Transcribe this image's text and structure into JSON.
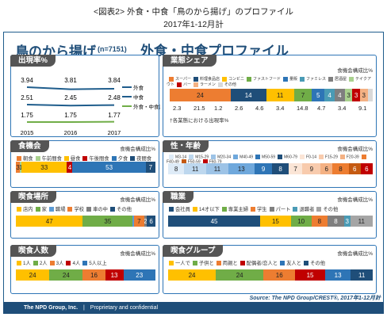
{
  "header": {
    "line1": "<図表2> 外食・中食「鳥のから揚げ」のプロファイル",
    "line2": "2017年1-12月計"
  },
  "title": {
    "main": "鳥のから揚げ",
    "n": "(n=7151)",
    "sub": "外食・中食プロファイル"
  },
  "source": "Source: The NPD Group/CREST®, 2017年1-12月計",
  "footer": {
    "company": "The NPD Group, Inc.",
    "sep": "|",
    "conf": "Proprietary and confidential"
  },
  "chart_data": [
    {
      "type": "line",
      "title": "出現率%",
      "x": [
        "2015",
        "2016",
        "2017"
      ],
      "series": [
        {
          "name": "外食",
          "values": [
            3.94,
            3.81,
            3.84
          ],
          "color": "#1f5d8c"
        },
        {
          "name": "中食",
          "values": [
            2.51,
            2.45,
            2.48
          ],
          "color": "#1f5d8c"
        },
        {
          "name": "外食・中食計",
          "values": [
            1.75,
            1.75,
            1.77
          ],
          "color": "#70ad47"
        }
      ],
      "labels": [
        [
          "3.94",
          "3.81",
          "3.84"
        ],
        [
          "2.51",
          "2.45",
          "2.48"
        ],
        [
          "1.75",
          "1.75",
          "1.77"
        ]
      ]
    },
    {
      "type": "bar",
      "title": "食機会",
      "note": "食機会構成比%",
      "legend": [
        "朝食",
        "午前間食",
        "昼食",
        "午後間食",
        "夕食",
        "夜間食"
      ],
      "values": [
        3,
        1,
        33,
        4,
        53,
        7
      ],
      "labels": [
        "3",
        "1",
        "33",
        "4",
        "53",
        "7"
      ],
      "colors": [
        "#ed7d31",
        "#a9d18e",
        "#ffc000",
        "#c00000",
        "#2e75b6",
        "#1f4e79"
      ]
    },
    {
      "type": "bar",
      "title": "喫食場所",
      "note": "食機会構成比%",
      "legend": [
        "店内",
        "家",
        "職場",
        "学校",
        "車の中",
        "その他"
      ],
      "values": [
        47,
        35,
        1,
        7,
        2,
        6
      ],
      "labels": [
        "47",
        "35",
        "",
        "7",
        "2",
        "6"
      ],
      "colors": [
        "#ffc000",
        "#70ad47",
        "#5b9bd5",
        "#ed7d31",
        "#7f7f7f",
        "#1f4e79"
      ]
    },
    {
      "type": "bar",
      "title": "喫食人数",
      "note": "食機会構成比%",
      "legend": [
        "1人",
        "2人",
        "3人",
        "4人",
        "5人以上"
      ],
      "values": [
        24,
        24,
        16,
        13,
        23
      ],
      "labels": [
        "24",
        "24",
        "16",
        "13",
        "23"
      ],
      "colors": [
        "#ffc000",
        "#70ad47",
        "#ed7d31",
        "#c00000",
        "#2e75b6"
      ]
    },
    {
      "type": "bar",
      "title": "業態シェア",
      "note": "食機会構成比%",
      "legend": [
        "スーパー",
        "料理食品店",
        "コンビニ",
        "ファストフード",
        "量販",
        "ファミレス",
        "居酒屋",
        "テイクアウト",
        "バー",
        "ラーメン",
        "その他"
      ],
      "values": [
        24,
        14,
        11,
        7,
        5,
        4,
        4,
        3,
        3,
        3,
        2
      ],
      "labels": [
        "24",
        "14",
        "11",
        "7",
        "5",
        "4",
        "4",
        "3",
        "3",
        "3",
        ""
      ],
      "colors": [
        "#ed7d31",
        "#1f4e79",
        "#ffc000",
        "#70ad47",
        "#2e75b6",
        "#4a9bb5",
        "#7f7f7f",
        "#a9d18e",
        "#c00000",
        "#f4b183",
        "#d9d9d9"
      ],
      "sub_values": [
        "2.3",
        "21.5",
        "1.2",
        "2.6",
        "4.6",
        "3.4",
        "14.8",
        "4.7",
        "3.4",
        "9.1"
      ],
      "sub_note": "†各業態における出現率%"
    },
    {
      "type": "bar",
      "title": "性・年齢",
      "note": "食機会構成比%",
      "legend": [
        "M3-14",
        "M15-29",
        "M20-34",
        "M40-49",
        "M50-59",
        "M60-79",
        "F0-14",
        "F15-29",
        "F20-39",
        "F40-49",
        "F50-59",
        "F60-79"
      ],
      "values": [
        8,
        11,
        11,
        13,
        9,
        8,
        7,
        9,
        6,
        8,
        6,
        6
      ],
      "labels": [
        "8",
        "11",
        "11",
        "13",
        "9",
        "8",
        "7",
        "9",
        "6",
        "8",
        "6",
        "6"
      ],
      "colors": [
        "#deebf7",
        "#bdd7ee",
        "#9dc3e6",
        "#6fa8dc",
        "#2e75b6",
        "#1f4e79",
        "#fbe5d6",
        "#f8cbad",
        "#f4b183",
        "#ed7d31",
        "#c55a11",
        "#c00000"
      ]
    },
    {
      "type": "bar",
      "title": "職業",
      "note": "食機会構成比%",
      "legend": [
        "会社員",
        "14才以下",
        "専業主婦",
        "学生",
        "パート",
        "退職者",
        "その他"
      ],
      "values": [
        45,
        15,
        10,
        8,
        8,
        3,
        11
      ],
      "labels": [
        "45",
        "15",
        "10",
        "8",
        "8",
        "3",
        "11"
      ],
      "colors": [
        "#1f4e79",
        "#ffc000",
        "#70ad47",
        "#ed7d31",
        "#7f7f7f",
        "#4a9bb5",
        "#a5a5a5"
      ]
    },
    {
      "type": "bar",
      "title": "喫食グループ",
      "note": "食機会構成比%",
      "legend": [
        "一人で",
        "子供と",
        "両親と",
        "配偶者/恋人と",
        "友人と",
        "その他"
      ],
      "values": [
        24,
        24,
        16,
        15,
        13,
        11
      ],
      "labels": [
        "24",
        "24",
        "16",
        "15",
        "13",
        "11"
      ],
      "colors": [
        "#ffc000",
        "#70ad47",
        "#ed7d31",
        "#c00000",
        "#2e75b6",
        "#1f4e79"
      ]
    }
  ]
}
